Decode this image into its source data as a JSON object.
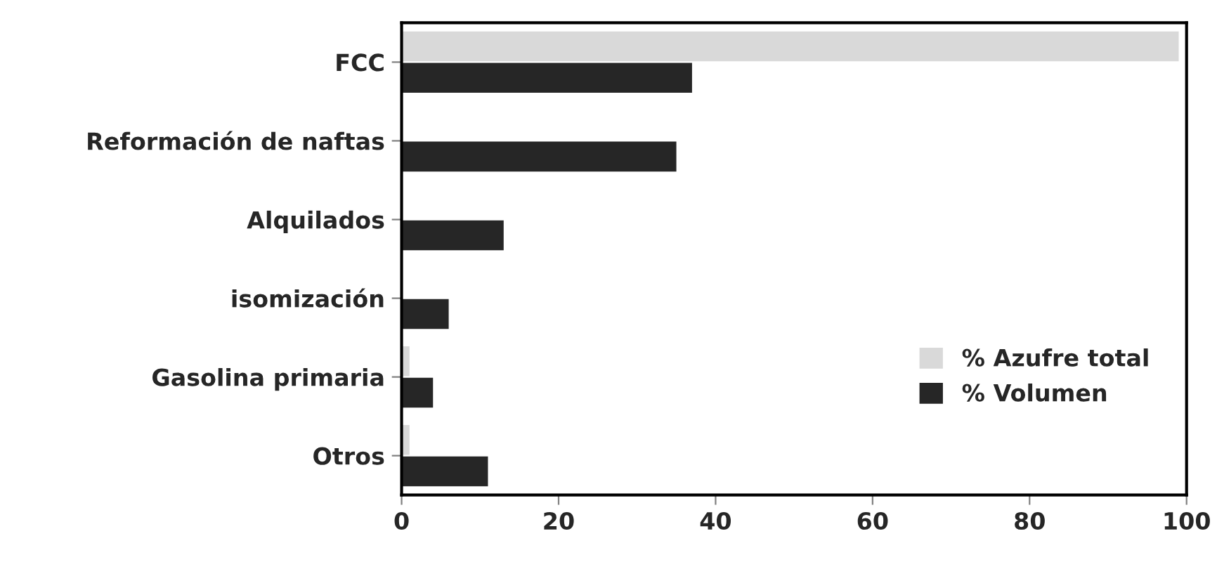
{
  "chart_data": {
    "type": "bar",
    "orientation": "horizontal",
    "categories": [
      "FCC",
      "Reformación de naftas",
      "Alquilados",
      "isomización",
      "Gasolina primaria",
      "Otros"
    ],
    "series": [
      {
        "name": "% Azufre total",
        "color": "#d9d9d9",
        "values": [
          99,
          0,
          0,
          0,
          1,
          1
        ]
      },
      {
        "name": "% Volumen",
        "color": "#262626",
        "values": [
          37,
          35,
          13,
          6,
          4,
          11
        ]
      }
    ],
    "xlim": [
      0,
      100
    ],
    "xticks": [
      0,
      20,
      40,
      60,
      80,
      100
    ],
    "grid": false,
    "legend": "right"
  }
}
